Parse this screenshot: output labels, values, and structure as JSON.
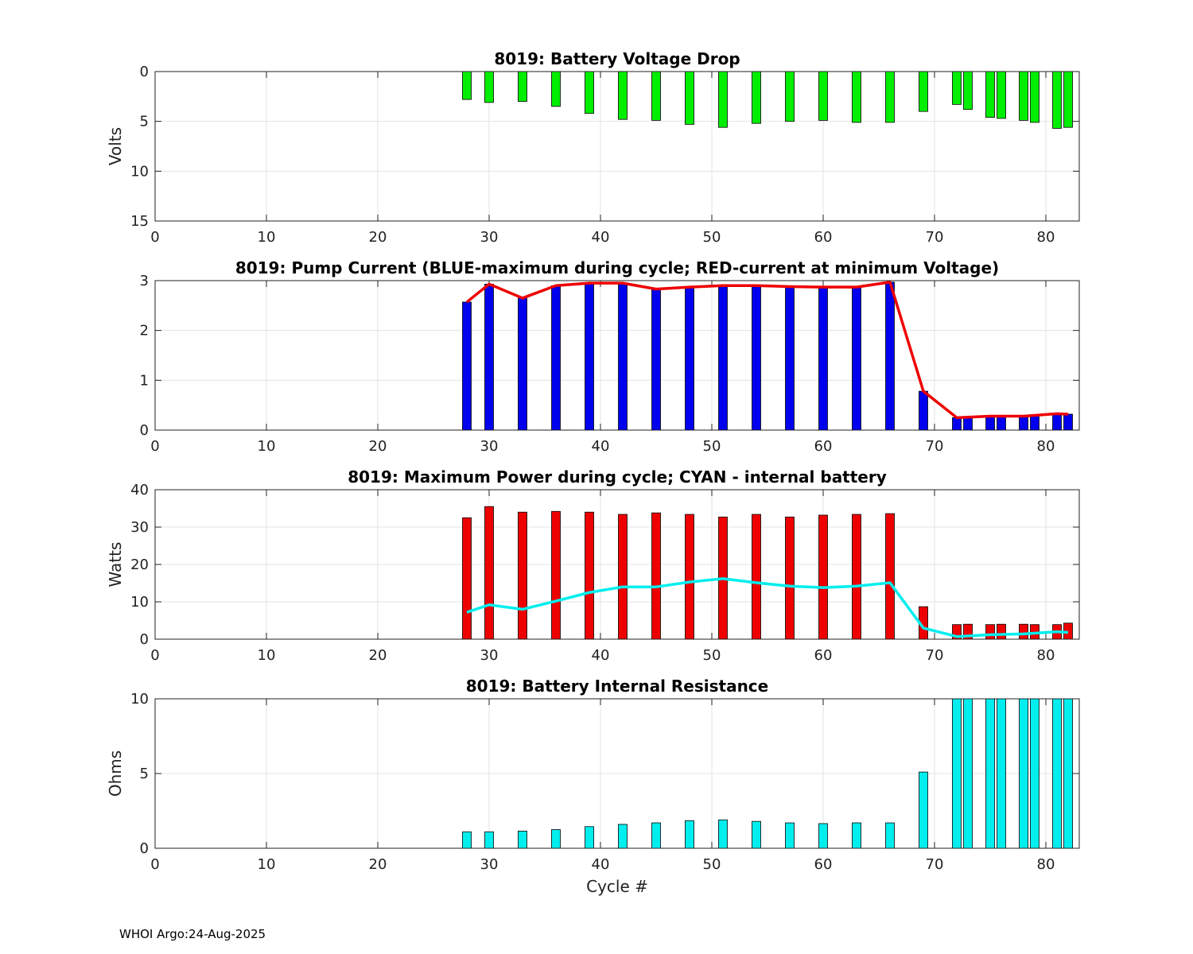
{
  "footer": "WHOI Argo:24-Aug-2025",
  "chart_data": [
    {
      "type": "bar",
      "title": "8019: Battery Voltage Drop",
      "xlabel": "",
      "ylabel": "Volts",
      "xlim": [
        0,
        83
      ],
      "ylim": [
        0,
        15
      ],
      "yreverse": true,
      "xticks": [
        "0",
        "10",
        "20",
        "30",
        "40",
        "50",
        "60",
        "70",
        "80"
      ],
      "yticks": [
        "0",
        "5",
        "10",
        "15"
      ],
      "grid": true,
      "bar_color": "#00ee00",
      "x": [
        28,
        30,
        33,
        36,
        39,
        42,
        45,
        48,
        51,
        54,
        57,
        60,
        63,
        66,
        69,
        72,
        73,
        75,
        76,
        78,
        79,
        81,
        82
      ],
      "values": [
        2.8,
        3.1,
        3.0,
        3.5,
        4.2,
        4.8,
        4.9,
        5.3,
        5.6,
        5.2,
        5.0,
        4.9,
        5.1,
        5.1,
        4.0,
        3.3,
        3.8,
        4.6,
        4.7,
        4.9,
        5.1,
        5.7,
        5.6
      ]
    },
    {
      "type": "bar",
      "title": "8019: Pump Current (BLUE-maximum during cycle; RED-current at minimum Voltage)",
      "xlabel": "",
      "ylabel": "",
      "xlim": [
        0,
        83
      ],
      "ylim": [
        0,
        3
      ],
      "xticks": [
        "0",
        "10",
        "20",
        "30",
        "40",
        "50",
        "60",
        "70",
        "80"
      ],
      "yticks": [
        "0",
        "1",
        "2",
        "3"
      ],
      "grid": true,
      "bar_color": "#0000ee",
      "line_color": "#ee0000",
      "x": [
        28,
        30,
        33,
        36,
        39,
        42,
        45,
        48,
        51,
        54,
        57,
        60,
        63,
        66,
        69,
        72,
        73,
        75,
        76,
        78,
        79,
        81,
        82
      ],
      "values": [
        2.57,
        2.93,
        2.65,
        2.9,
        2.95,
        2.95,
        2.83,
        2.87,
        2.9,
        2.9,
        2.88,
        2.87,
        2.87,
        2.97,
        0.78,
        0.25,
        0.27,
        0.28,
        0.28,
        0.28,
        0.29,
        0.33,
        0.32
      ],
      "line_x": [
        28,
        30,
        33,
        36,
        39,
        42,
        45,
        48,
        51,
        54,
        57,
        60,
        63,
        66,
        69,
        72,
        75,
        78,
        81,
        82
      ],
      "line_values": [
        2.57,
        2.93,
        2.65,
        2.9,
        2.95,
        2.95,
        2.83,
        2.87,
        2.9,
        2.9,
        2.88,
        2.87,
        2.87,
        2.97,
        0.78,
        0.25,
        0.28,
        0.28,
        0.33,
        0.32
      ]
    },
    {
      "type": "bar",
      "title": "8019: Maximum Power during cycle; CYAN - internal battery",
      "xlabel": "",
      "ylabel": "Watts",
      "xlim": [
        0,
        83
      ],
      "ylim": [
        0,
        40
      ],
      "xticks": [
        "0",
        "10",
        "20",
        "30",
        "40",
        "50",
        "60",
        "70",
        "80"
      ],
      "yticks": [
        "0",
        "10",
        "20",
        "30",
        "40"
      ],
      "grid": true,
      "bar_color": "#ee0000",
      "line_color": "#00eeee",
      "x": [
        28,
        30,
        33,
        36,
        39,
        42,
        45,
        48,
        51,
        54,
        57,
        60,
        63,
        66,
        69,
        72,
        73,
        75,
        76,
        78,
        79,
        81,
        82
      ],
      "values": [
        32.5,
        35.5,
        34.0,
        34.2,
        34.0,
        33.4,
        33.8,
        33.4,
        32.7,
        33.4,
        32.7,
        33.2,
        33.4,
        33.6,
        8.7,
        3.9,
        4.0,
        3.9,
        4.0,
        4.0,
        3.9,
        3.9,
        4.3
      ],
      "line_x": [
        28,
        30,
        33,
        36,
        39,
        42,
        45,
        48,
        51,
        54,
        57,
        60,
        63,
        66,
        69,
        72,
        75,
        78,
        81,
        82
      ],
      "line_values": [
        7.2,
        9.2,
        8.0,
        10.2,
        12.5,
        14.0,
        14.0,
        15.3,
        16.2,
        15.1,
        14.2,
        13.8,
        14.2,
        15.1,
        3.0,
        0.7,
        1.2,
        1.4,
        2.0,
        1.8
      ]
    },
    {
      "type": "bar",
      "title": "8019: Battery Internal Resistance",
      "xlabel": "Cycle #",
      "ylabel": "Ohms",
      "xlim": [
        0,
        83
      ],
      "ylim": [
        0,
        10
      ],
      "xticks": [
        "0",
        "10",
        "20",
        "30",
        "40",
        "50",
        "60",
        "70",
        "80"
      ],
      "yticks": [
        "0",
        "5",
        "10"
      ],
      "grid": true,
      "bar_color": "#00eeee",
      "x": [
        28,
        30,
        33,
        36,
        39,
        42,
        45,
        48,
        51,
        54,
        57,
        60,
        63,
        66,
        69,
        72,
        73,
        75,
        76,
        78,
        79,
        81,
        82
      ],
      "values": [
        1.1,
        1.1,
        1.15,
        1.25,
        1.45,
        1.6,
        1.7,
        1.85,
        1.9,
        1.8,
        1.7,
        1.65,
        1.7,
        1.7,
        5.1,
        10,
        10,
        10,
        10,
        10,
        10,
        10,
        10
      ]
    }
  ]
}
